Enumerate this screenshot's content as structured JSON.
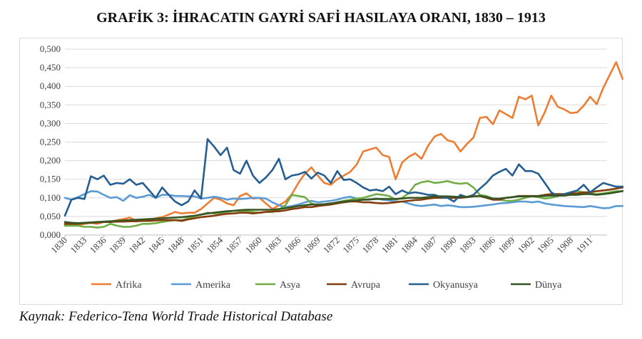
{
  "chart_data": {
    "type": "line",
    "title": "GRAFİK 3: İHRACATIN GAYRİ SAFİ HASILAYA ORANI, 1830 – 1913",
    "source": "Kaynak: Federico-Tena World Trade Historical Database",
    "xlabel": "",
    "ylabel": "",
    "ylim": [
      0,
      0.5
    ],
    "yticks": [
      "0,000",
      "0,050",
      "0,100",
      "0,150",
      "0,200",
      "0,250",
      "0,300",
      "0,350",
      "0,400",
      "0,450",
      "0,500"
    ],
    "x_start": 1830,
    "x_end": 1913,
    "xticks": [
      "1830",
      "1833",
      "1836",
      "1839",
      "1842",
      "1845",
      "1848",
      "1851",
      "1854",
      "1857",
      "1860",
      "1863",
      "1866",
      "1869",
      "1872",
      "1875",
      "1878",
      "1881",
      "1884",
      "1887",
      "1890",
      "1893",
      "1896",
      "1899",
      "1902",
      "1905",
      "1908",
      "1911"
    ],
    "grid": true,
    "legend": "bottom",
    "series": [
      {
        "name": "Afrika",
        "color": "#ED7D31",
        "values": [
          0.028,
          0.028,
          0.027,
          0.03,
          0.033,
          0.03,
          0.035,
          0.035,
          0.04,
          0.043,
          0.047,
          0.038,
          0.04,
          0.04,
          0.045,
          0.048,
          0.055,
          0.062,
          0.058,
          0.06,
          0.06,
          0.07,
          0.085,
          0.1,
          0.095,
          0.085,
          0.08,
          0.105,
          0.112,
          0.098,
          0.1,
          0.085,
          0.07,
          0.08,
          0.09,
          0.11,
          0.14,
          0.165,
          0.182,
          0.16,
          0.14,
          0.135,
          0.15,
          0.16,
          0.17,
          0.19,
          0.225,
          0.23,
          0.235,
          0.215,
          0.21,
          0.15,
          0.195,
          0.21,
          0.22,
          0.205,
          0.24,
          0.265,
          0.272,
          0.255,
          0.25,
          0.225,
          0.245,
          0.262,
          0.315,
          0.318,
          0.298,
          0.335,
          0.325,
          0.315,
          0.372,
          0.365,
          0.375,
          0.295,
          0.33,
          0.375,
          0.345,
          0.338,
          0.328,
          0.33,
          0.348,
          0.372,
          0.352,
          0.395,
          0.43,
          0.465,
          0.42
        ]
      },
      {
        "name": "Amerika",
        "color": "#5B9BD5",
        "values": [
          0.1,
          0.095,
          0.102,
          0.11,
          0.118,
          0.117,
          0.108,
          0.1,
          0.102,
          0.092,
          0.107,
          0.1,
          0.103,
          0.108,
          0.1,
          0.108,
          0.108,
          0.105,
          0.105,
          0.104,
          0.104,
          0.098,
          0.1,
          0.103,
          0.1,
          0.095,
          0.098,
          0.097,
          0.098,
          0.1,
          0.1,
          0.098,
          0.088,
          0.08,
          0.075,
          0.078,
          0.082,
          0.088,
          0.092,
          0.088,
          0.09,
          0.092,
          0.095,
          0.1,
          0.103,
          0.098,
          0.095,
          0.095,
          0.098,
          0.095,
          0.093,
          0.09,
          0.09,
          0.085,
          0.08,
          0.078,
          0.08,
          0.082,
          0.078,
          0.08,
          0.078,
          0.075,
          0.075,
          0.076,
          0.078,
          0.08,
          0.082,
          0.085,
          0.086,
          0.088,
          0.09,
          0.09,
          0.088,
          0.09,
          0.085,
          0.082,
          0.08,
          0.078,
          0.077,
          0.076,
          0.075,
          0.078,
          0.075,
          0.072,
          0.073,
          0.078,
          0.078
        ]
      },
      {
        "name": "Asya",
        "color": "#70AD47",
        "values": [
          0.025,
          0.025,
          0.025,
          0.022,
          0.022,
          0.02,
          0.022,
          0.03,
          0.025,
          0.022,
          0.022,
          0.025,
          0.03,
          0.03,
          0.032,
          0.035,
          0.038,
          0.04,
          0.04,
          0.045,
          0.05,
          0.055,
          0.06,
          0.058,
          0.06,
          0.062,
          0.065,
          0.065,
          0.065,
          0.062,
          0.06,
          0.062,
          0.062,
          0.068,
          0.08,
          0.108,
          0.105,
          0.102,
          0.085,
          0.08,
          0.08,
          0.082,
          0.088,
          0.092,
          0.095,
          0.098,
          0.1,
          0.105,
          0.11,
          0.108,
          0.105,
          0.095,
          0.1,
          0.112,
          0.135,
          0.142,
          0.145,
          0.14,
          0.142,
          0.145,
          0.14,
          0.138,
          0.14,
          0.128,
          0.108,
          0.105,
          0.098,
          0.095,
          0.092,
          0.092,
          0.095,
          0.1,
          0.105,
          0.102,
          0.098,
          0.1,
          0.105,
          0.11,
          0.115,
          0.118,
          0.115,
          0.112,
          0.11,
          0.112,
          0.115,
          0.118,
          0.118
        ]
      },
      {
        "name": "Avrupa",
        "color": "#843C0C",
        "values": [
          0.03,
          0.03,
          0.03,
          0.032,
          0.033,
          0.034,
          0.035,
          0.035,
          0.036,
          0.036,
          0.037,
          0.037,
          0.038,
          0.038,
          0.039,
          0.04,
          0.04,
          0.04,
          0.038,
          0.042,
          0.045,
          0.048,
          0.05,
          0.052,
          0.055,
          0.057,
          0.058,
          0.06,
          0.06,
          0.058,
          0.06,
          0.062,
          0.063,
          0.064,
          0.066,
          0.07,
          0.072,
          0.075,
          0.075,
          0.078,
          0.08,
          0.082,
          0.085,
          0.088,
          0.09,
          0.09,
          0.088,
          0.088,
          0.086,
          0.085,
          0.086,
          0.088,
          0.09,
          0.092,
          0.094,
          0.095,
          0.098,
          0.1,
          0.1,
          0.1,
          0.1,
          0.1,
          0.102,
          0.104,
          0.105,
          0.1,
          0.095,
          0.095,
          0.1,
          0.102,
          0.105,
          0.105,
          0.105,
          0.105,
          0.108,
          0.11,
          0.11,
          0.11,
          0.112,
          0.112,
          0.115,
          0.115,
          0.118,
          0.12,
          0.122,
          0.125,
          0.128
        ]
      },
      {
        "name": "Okyanusya",
        "color": "#255E91",
        "values": [
          0.052,
          0.095,
          0.1,
          0.097,
          0.158,
          0.15,
          0.16,
          0.135,
          0.14,
          0.138,
          0.15,
          0.135,
          0.14,
          0.12,
          0.1,
          0.128,
          0.108,
          0.09,
          0.08,
          0.09,
          0.12,
          0.098,
          0.258,
          0.238,
          0.215,
          0.235,
          0.175,
          0.165,
          0.2,
          0.16,
          0.14,
          0.155,
          0.175,
          0.205,
          0.15,
          0.16,
          0.163,
          0.17,
          0.152,
          0.168,
          0.16,
          0.14,
          0.172,
          0.148,
          0.15,
          0.14,
          0.128,
          0.12,
          0.122,
          0.118,
          0.13,
          0.11,
          0.12,
          0.112,
          0.115,
          0.112,
          0.108,
          0.108,
          0.102,
          0.1,
          0.09,
          0.108,
          0.102,
          0.108,
          0.125,
          0.14,
          0.16,
          0.17,
          0.178,
          0.16,
          0.19,
          0.172,
          0.172,
          0.165,
          0.14,
          0.115,
          0.105,
          0.11,
          0.115,
          0.12,
          0.135,
          0.115,
          0.128,
          0.14,
          0.135,
          0.13,
          0.13
        ]
      },
      {
        "name": "Dünya",
        "color": "#375623",
        "values": [
          0.035,
          0.033,
          0.032,
          0.033,
          0.034,
          0.035,
          0.036,
          0.037,
          0.038,
          0.039,
          0.04,
          0.041,
          0.042,
          0.043,
          0.044,
          0.045,
          0.046,
          0.047,
          0.048,
          0.05,
          0.052,
          0.055,
          0.058,
          0.06,
          0.062,
          0.064,
          0.065,
          0.067,
          0.068,
          0.068,
          0.068,
          0.068,
          0.068,
          0.07,
          0.072,
          0.075,
          0.078,
          0.08,
          0.082,
          0.082,
          0.083,
          0.085,
          0.088,
          0.09,
          0.092,
          0.093,
          0.095,
          0.096,
          0.097,
          0.097,
          0.097,
          0.097,
          0.098,
          0.1,
          0.1,
          0.1,
          0.102,
          0.104,
          0.104,
          0.104,
          0.103,
          0.102,
          0.103,
          0.104,
          0.105,
          0.102,
          0.098,
          0.098,
          0.1,
          0.102,
          0.104,
          0.104,
          0.104,
          0.104,
          0.105,
          0.106,
          0.106,
          0.106,
          0.108,
          0.108,
          0.11,
          0.11,
          0.108,
          0.11,
          0.112,
          0.115,
          0.118
        ]
      }
    ]
  }
}
